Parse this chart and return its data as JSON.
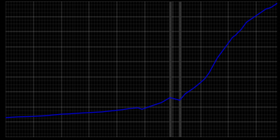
{
  "background_color": "#000000",
  "plot_bg_color": "#000000",
  "grid_color": "#ffffff",
  "line_color": "#0000cc",
  "line_width": 1.0,
  "years": [
    1821,
    1830,
    1840,
    1850,
    1855,
    1861,
    1867,
    1871,
    1875,
    1880,
    1885,
    1890,
    1895,
    1900,
    1905,
    1910,
    1916,
    1919,
    1925,
    1933,
    1939,
    1946,
    1950,
    1956,
    1961,
    1964,
    1967,
    1970,
    1973,
    1975,
    1978,
    1980,
    1982,
    1984,
    1986,
    1988,
    1990,
    1992,
    1994,
    1996,
    1998,
    2000,
    2002,
    2004,
    2006,
    2008,
    2010,
    2012,
    2014,
    2016
  ],
  "population": [
    5200,
    5400,
    5500,
    5700,
    5900,
    6100,
    6200,
    6300,
    6400,
    6500,
    6600,
    6700,
    6900,
    7100,
    7300,
    7600,
    7800,
    7400,
    8200,
    9200,
    10500,
    9800,
    11500,
    13000,
    14500,
    15500,
    17000,
    19000,
    21000,
    22000,
    23500,
    24500,
    25500,
    26500,
    27000,
    27800,
    28500,
    29500,
    30500,
    31000,
    31500,
    32000,
    32500,
    33000,
    33500,
    34000,
    34200,
    34500,
    35000,
    35500
  ],
  "vlines": [
    1939,
    1946
  ],
  "vline_color": "#333333",
  "ylim": [
    0,
    36000
  ],
  "xlim": [
    1821,
    2016
  ],
  "grid_alpha": 0.55,
  "grid_linewidth": 0.3,
  "minor_grid_alpha": 0.25,
  "minor_grid_linewidth": 0.2,
  "major_xtick_interval": 20,
  "minor_xtick_interval": 2,
  "major_ytick_interval": 4000,
  "minor_ytick_interval": 1000
}
